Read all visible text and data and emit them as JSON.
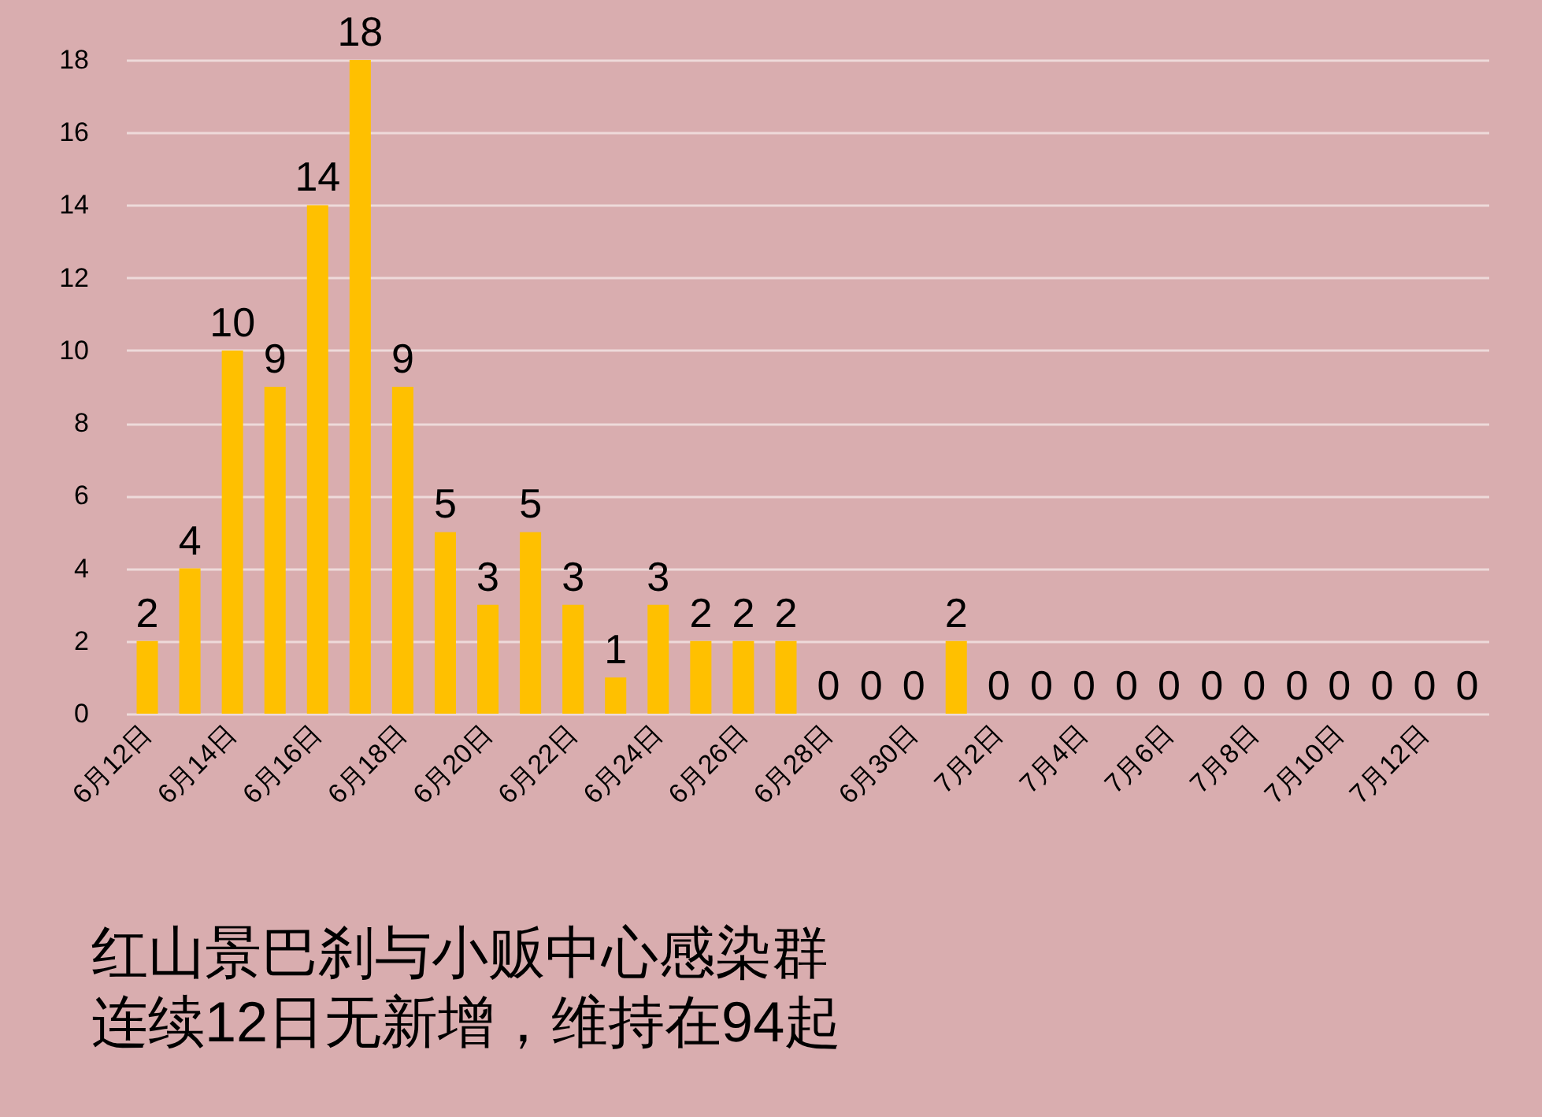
{
  "chart_data": {
    "type": "bar",
    "title": "红山景巴刹与小贩中心感染群",
    "subtitle": "连续12日无新增，维持在94起",
    "categories": [
      "6月12日",
      null,
      "6月14日",
      null,
      "6月16日",
      null,
      "6月18日",
      null,
      "6月20日",
      null,
      "6月22日",
      null,
      "6月24日",
      null,
      "6月26日",
      null,
      "6月28日",
      null,
      "6月30日",
      null,
      "7月2日",
      null,
      "7月4日",
      null,
      "7月6日",
      null,
      "7月8日",
      null,
      "7月10日",
      null,
      "7月12日",
      null
    ],
    "values": [
      2,
      4,
      10,
      9,
      14,
      18,
      9,
      5,
      3,
      5,
      3,
      1,
      3,
      2,
      2,
      2,
      0,
      0,
      0,
      2,
      0,
      0,
      0,
      0,
      0,
      0,
      0,
      0,
      0,
      0,
      0,
      0
    ],
    "color": "#ffc000",
    "ylim": [
      0,
      18
    ],
    "yticks": [
      0,
      2,
      4,
      6,
      8,
      10,
      12,
      14,
      16,
      18
    ],
    "grid": "y",
    "data_labels": true
  }
}
